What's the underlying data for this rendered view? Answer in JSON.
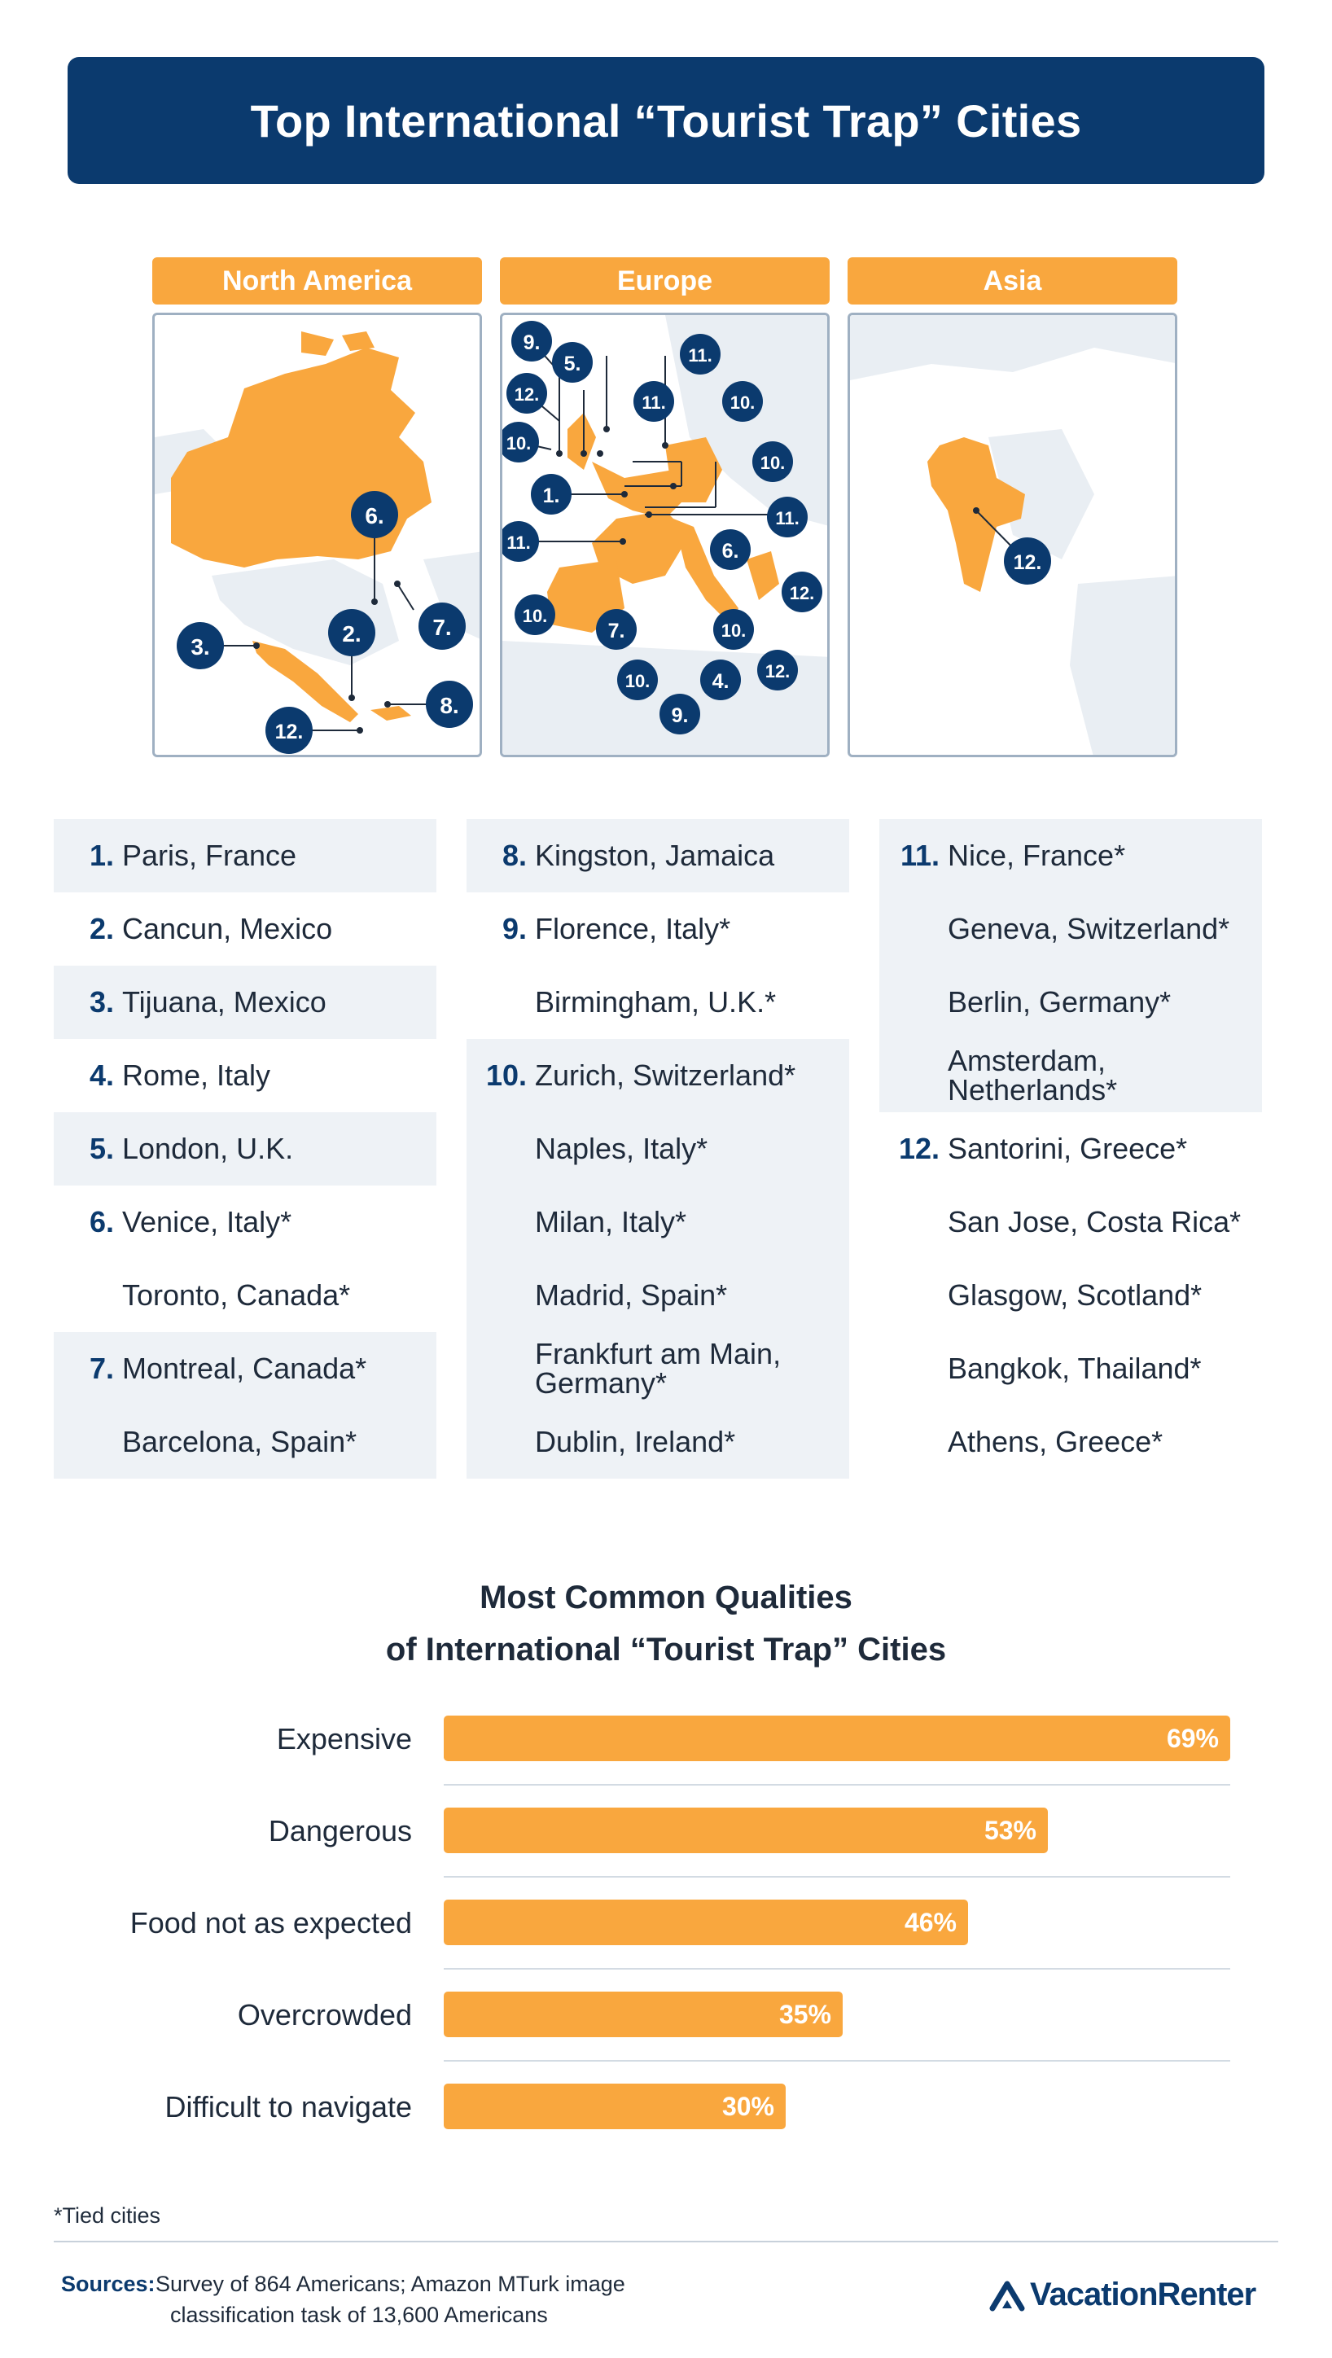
{
  "title": "Top International “Tourist Trap” Cities",
  "regions": [
    {
      "label": "North America",
      "markers": [
        "6.",
        "3.",
        "2.",
        "7.",
        "8.",
        "12."
      ]
    },
    {
      "label": "Europe",
      "markers": [
        "9.",
        "5.",
        "11.",
        "12.",
        "11.",
        "10.",
        "10.",
        "10.",
        "1.",
        "11.",
        "11.",
        "6.",
        "12.",
        "10.",
        "7.",
        "10.",
        "12.",
        "10.",
        "4.",
        "9."
      ]
    },
    {
      "label": "Asia",
      "markers": [
        "12."
      ]
    }
  ],
  "rankings": {
    "columns": [
      [
        {
          "num": "1.",
          "city": "Paris, France"
        },
        {
          "num": "2.",
          "city": "Cancun, Mexico"
        },
        {
          "num": "3.",
          "city": "Tijuana, Mexico"
        },
        {
          "num": "4.",
          "city": "Rome, Italy"
        },
        {
          "num": "5.",
          "city": "London, U.K."
        },
        {
          "num": "6.",
          "city": "Venice, Italy*"
        },
        {
          "num": "",
          "city": "Toronto, Canada*"
        },
        {
          "num": "7.",
          "city": "Montreal, Canada*"
        },
        {
          "num": "",
          "city": "Barcelona, Spain*"
        }
      ],
      [
        {
          "num": "8.",
          "city": "Kingston, Jamaica"
        },
        {
          "num": "9.",
          "city": "Florence, Italy*"
        },
        {
          "num": "",
          "city": "Birmingham, U.K.*"
        },
        {
          "num": "10.",
          "city": "Zurich, Switzerland*"
        },
        {
          "num": "",
          "city": "Naples, Italy*"
        },
        {
          "num": "",
          "city": "Milan, Italy*"
        },
        {
          "num": "",
          "city": "Madrid, Spain*"
        },
        {
          "num": "",
          "city": "Frankfurt am Main, Germany*"
        },
        {
          "num": "",
          "city": "Dublin, Ireland*"
        }
      ],
      [
        {
          "num": "11.",
          "city": "Nice, France*"
        },
        {
          "num": "",
          "city": "Geneva, Switzerland*"
        },
        {
          "num": "",
          "city": "Berlin, Germany*"
        },
        {
          "num": "",
          "city": "Amsterdam, Netherlands*"
        },
        {
          "num": "12.",
          "city": "Santorini, Greece*"
        },
        {
          "num": "",
          "city": "San Jose, Costa Rica*"
        },
        {
          "num": "",
          "city": "Glasgow, Scotland*"
        },
        {
          "num": "",
          "city": "Bangkok, Thailand*"
        },
        {
          "num": "",
          "city": "Athens, Greece*"
        }
      ]
    ]
  },
  "chart_data": {
    "type": "bar",
    "title": "Most Common Qualities of International “Tourist Trap” Cities",
    "title_lines": [
      "Most Common Qualities",
      "of International “Tourist Trap” Cities"
    ],
    "categories": [
      "Expensive",
      "Dangerous",
      "Food not as expected",
      "Overcrowded",
      "Difficult to navigate"
    ],
    "values": [
      69,
      53,
      46,
      35,
      30
    ],
    "value_labels": [
      "69%",
      "53%",
      "46%",
      "35%",
      "30%"
    ],
    "orientation": "horizontal",
    "xlim": [
      0,
      100
    ]
  },
  "footnote": "*Tied cities",
  "sources": {
    "label": "Sources:",
    "line1": "Survey of 864 Americans; Amazon MTurk image",
    "line2": "classification task of 13,600 Americans"
  },
  "brand": {
    "name": "VacationRenter",
    "icon": "house-roof-icon"
  },
  "colors": {
    "navy": "#0b3a6e",
    "orange": "#f9a73e",
    "shade": "#eef2f6",
    "land": "#e9eef3"
  }
}
